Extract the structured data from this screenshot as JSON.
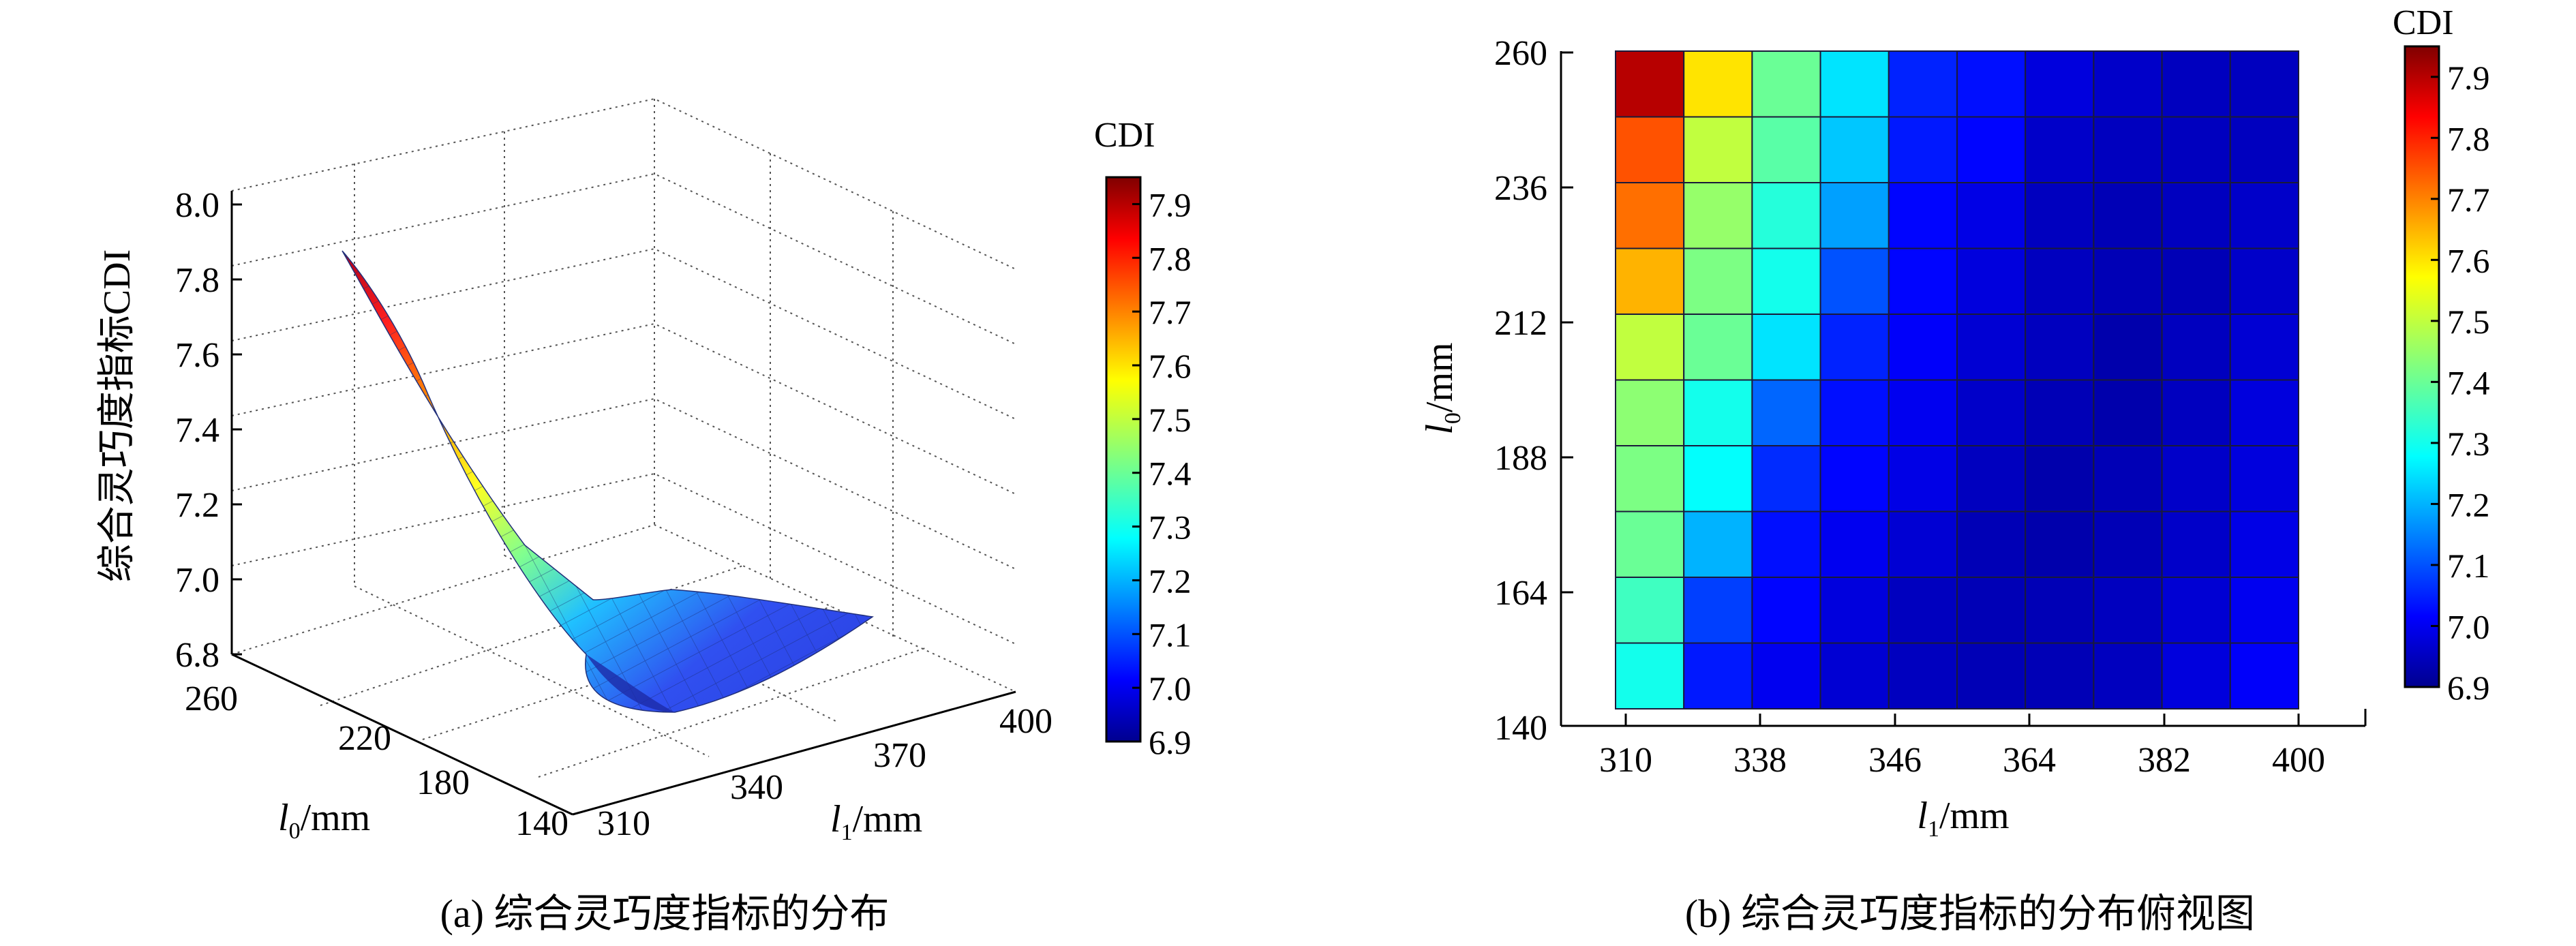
{
  "chart_data": [
    {
      "type": "surface3d",
      "panel_caption": "(a) 综合灵巧度指标的分布",
      "zlabel": "综合灵巧度指标CDI",
      "xlabel_italic": "l",
      "xlabel_sub": "1",
      "xlabel_unit": "/mm",
      "ylabel_italic": "l",
      "ylabel_sub": "0",
      "ylabel_unit": "/mm",
      "x_ticks": [
        "310",
        "340",
        "370",
        "400"
      ],
      "y_ticks": [
        "140",
        "180",
        "220",
        "260"
      ],
      "z_ticks": [
        "6.8",
        "7.0",
        "7.2",
        "7.4",
        "7.6",
        "7.8",
        "8.0"
      ],
      "xlim": [
        310,
        400
      ],
      "ylim": [
        140,
        260
      ],
      "zlim": [
        6.8,
        8.0
      ],
      "colorbar": {
        "title": "CDI",
        "range": [
          6.9,
          7.95
        ],
        "ticks": [
          "6.9",
          "7.0",
          "7.1",
          "7.2",
          "7.3",
          "7.4",
          "7.5",
          "7.6",
          "7.7",
          "7.8",
          "7.9"
        ]
      }
    },
    {
      "type": "heatmap",
      "panel_caption": "(b) 综合灵巧度指标的分布俯视图",
      "xlabel_italic": "l",
      "xlabel_sub": "1",
      "xlabel_unit": "/mm",
      "ylabel_italic": "l",
      "ylabel_sub": "0",
      "ylabel_unit": "/mm",
      "x_ticks": [
        "310",
        "338",
        "346",
        "364",
        "382",
        "400"
      ],
      "y_ticks": [
        "140",
        "164",
        "188",
        "212",
        "236",
        "260"
      ],
      "rows_top_to_bottom": [
        [
          7.9,
          7.6,
          7.4,
          7.25,
          7.05,
          7.03,
          6.98,
          6.96,
          6.95,
          6.95
        ],
        [
          7.75,
          7.5,
          7.38,
          7.22,
          7.04,
          7.02,
          6.96,
          6.95,
          6.95,
          6.95
        ],
        [
          7.72,
          7.45,
          7.32,
          7.18,
          7.02,
          6.99,
          6.95,
          6.94,
          6.95,
          6.96
        ],
        [
          7.65,
          7.42,
          7.3,
          7.1,
          7.02,
          6.98,
          6.95,
          6.94,
          6.94,
          6.96
        ],
        [
          7.5,
          7.4,
          7.25,
          7.05,
          7.01,
          6.97,
          6.95,
          6.93,
          6.95,
          6.97
        ],
        [
          7.44,
          7.3,
          7.12,
          7.03,
          7.0,
          6.96,
          6.94,
          6.93,
          6.95,
          6.98
        ],
        [
          7.42,
          7.28,
          7.06,
          7.02,
          6.99,
          6.95,
          6.93,
          6.94,
          6.96,
          6.98
        ],
        [
          7.4,
          7.2,
          7.03,
          7.0,
          6.97,
          6.94,
          6.93,
          6.94,
          6.96,
          6.99
        ],
        [
          7.35,
          7.08,
          7.02,
          6.98,
          6.95,
          6.94,
          6.94,
          6.95,
          6.97,
          7.0
        ],
        [
          7.3,
          7.04,
          7.0,
          6.97,
          6.95,
          6.94,
          6.94,
          6.95,
          6.98,
          7.01
        ]
      ],
      "colorbar": {
        "title": "CDI",
        "range": [
          6.9,
          7.95
        ],
        "ticks": [
          "6.9",
          "7.0",
          "7.1",
          "7.2",
          "7.3",
          "7.4",
          "7.5",
          "7.6",
          "7.7",
          "7.8",
          "7.9"
        ]
      }
    }
  ]
}
